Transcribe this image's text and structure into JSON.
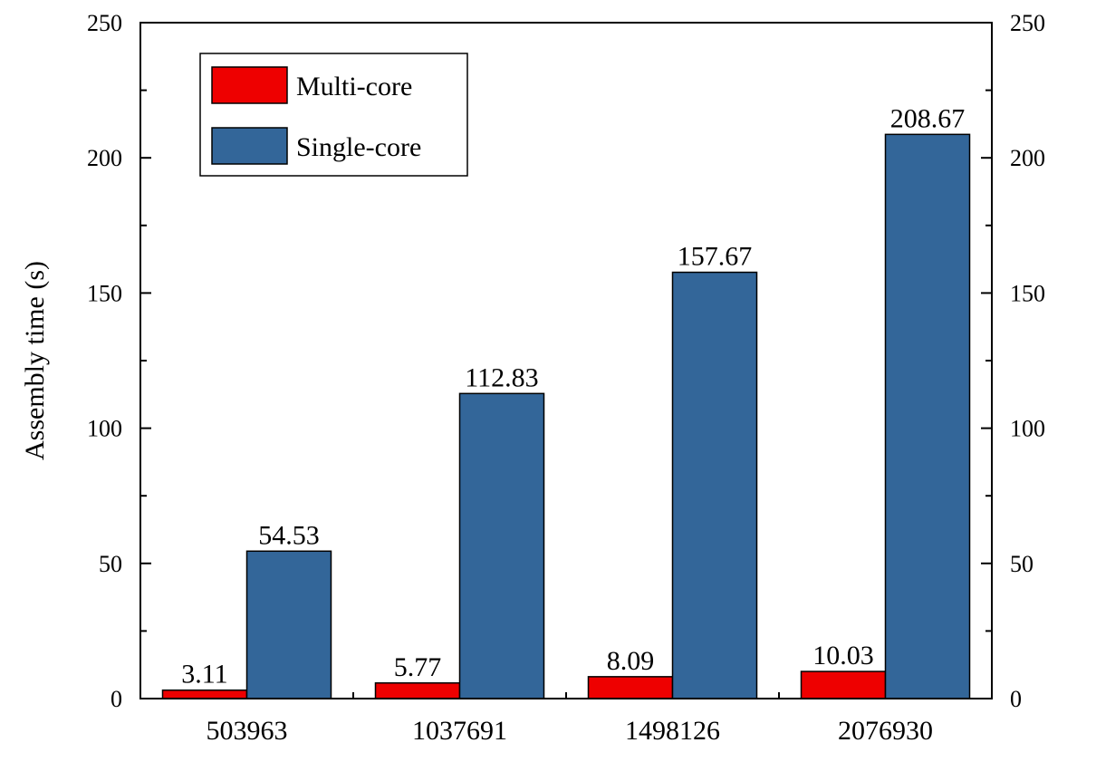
{
  "chart_data": {
    "type": "bar",
    "title": "",
    "xlabel": "",
    "ylabel": "Assembly time (s)",
    "ylim": [
      0,
      250
    ],
    "yticks": [
      0,
      50,
      100,
      150,
      200,
      250
    ],
    "grid": false,
    "legend_position": "top-left",
    "categories": [
      "503963",
      "1037691",
      "1498126",
      "2076930"
    ],
    "series": [
      {
        "name": "Multi-core",
        "color": "#ee0000",
        "values": [
          3.11,
          5.77,
          8.09,
          10.03
        ],
        "labels": [
          "3.11",
          "5.77",
          "8.09",
          "10.03"
        ]
      },
      {
        "name": "Single-core",
        "color": "#336699",
        "values": [
          54.53,
          112.83,
          157.67,
          208.67
        ],
        "labels": [
          "54.53",
          "112.83",
          "157.67",
          "208.67"
        ]
      }
    ]
  }
}
